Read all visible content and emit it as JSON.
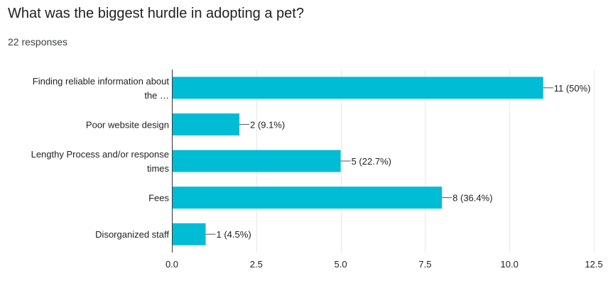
{
  "header": {
    "question": "What was the biggest hurdle in adopting a pet?",
    "responses": "22 responses"
  },
  "colors": {
    "bar": "#00bcd4",
    "grid": "#e8e8e8",
    "axis": "#333333",
    "text": "#222222"
  },
  "chart_data": {
    "type": "bar",
    "orientation": "horizontal",
    "categories": [
      [
        "Finding reliable information about",
        "the …"
      ],
      [
        "Poor website design"
      ],
      [
        "Lengthy Process and/or response",
        "times"
      ],
      [
        "Fees"
      ],
      [
        "Disorganized staff"
      ]
    ],
    "values": [
      11,
      2,
      5,
      8,
      1
    ],
    "data_labels": [
      "11 (50%)",
      "2 (9.1%)",
      "5 (22.7%)",
      "8 (36.4%)",
      "1 (4.5%)"
    ],
    "xlim": [
      0,
      12.5
    ],
    "xticks": [
      0,
      2.5,
      5,
      7.5,
      10,
      12.5
    ],
    "xtick_labels": [
      "0.0",
      "2.5",
      "5.0",
      "7.5",
      "10.0",
      "12.5"
    ],
    "grid": true
  }
}
